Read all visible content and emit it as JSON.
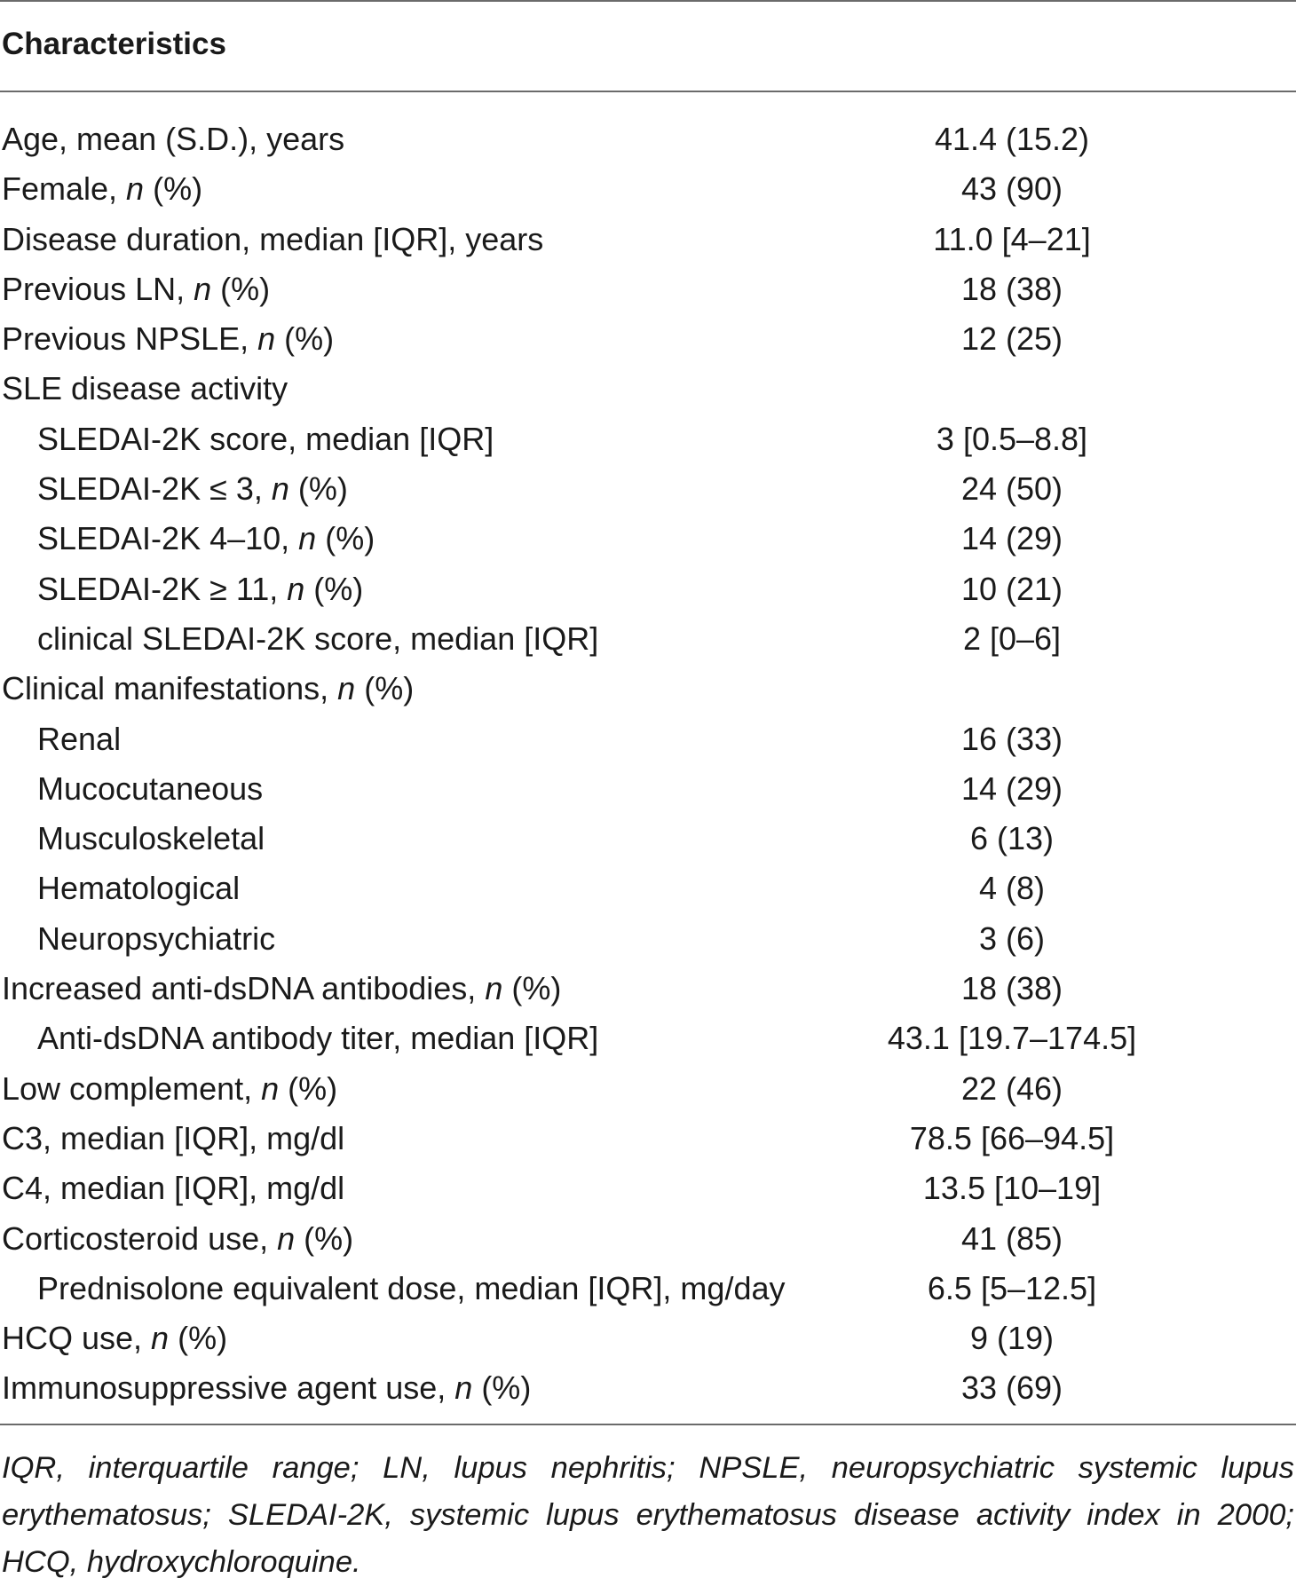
{
  "table": {
    "header": "Characteristics",
    "rows": [
      {
        "label": "Age, mean (S.D.), years",
        "value": "41.4 (15.2)",
        "indent": false
      },
      {
        "label": "Female, n (%)",
        "value": "43 (90)",
        "indent": false
      },
      {
        "label": "Disease duration, median [IQR], years",
        "value": "11.0 [4–21]",
        "indent": false
      },
      {
        "label": "Previous LN, n (%)",
        "value": "18 (38)",
        "indent": false
      },
      {
        "label": "Previous NPSLE, n (%)",
        "value": "12 (25)",
        "indent": false
      },
      {
        "label": "SLE disease activity",
        "value": "",
        "indent": false
      },
      {
        "label": "SLEDAI-2K score, median [IQR]",
        "value": "3 [0.5–8.8]",
        "indent": true
      },
      {
        "label": "SLEDAI-2K ≤ 3, n (%)",
        "value": "24 (50)",
        "indent": true
      },
      {
        "label": "SLEDAI-2K 4–10, n (%)",
        "value": "14 (29)",
        "indent": true
      },
      {
        "label": "SLEDAI-2K ≥ 11, n (%)",
        "value": "10 (21)",
        "indent": true
      },
      {
        "label": "clinical SLEDAI-2K score, median [IQR]",
        "value": "2 [0–6]",
        "indent": true
      },
      {
        "label": "Clinical manifestations, n (%)",
        "value": "",
        "indent": false
      },
      {
        "label": "Renal",
        "value": "16 (33)",
        "indent": true
      },
      {
        "label": "Mucocutaneous",
        "value": "14 (29)",
        "indent": true
      },
      {
        "label": "Musculoskeletal",
        "value": "6 (13)",
        "indent": true
      },
      {
        "label": "Hematological",
        "value": "4 (8)",
        "indent": true
      },
      {
        "label": "Neuropsychiatric",
        "value": "3 (6)",
        "indent": true
      },
      {
        "label": "Increased anti-dsDNA antibodies, n (%)",
        "value": "18 (38)",
        "indent": false
      },
      {
        "label": "Anti-dsDNA antibody titer, median [IQR]",
        "value": "43.1 [19.7–174.5]",
        "indent": true
      },
      {
        "label": "Low complement, n (%)",
        "value": "22 (46)",
        "indent": false
      },
      {
        "label": "C3, median [IQR], mg/dl",
        "value": "78.5 [66–94.5]",
        "indent": false
      },
      {
        "label": "C4, median [IQR], mg/dl",
        "value": "13.5 [10–19]",
        "indent": false
      },
      {
        "label": "Corticosteroid use, n (%)",
        "value": "41 (85)",
        "indent": false
      },
      {
        "label": "Prednisolone equivalent dose, median [IQR], mg/day",
        "value": "6.5 [5–12.5]",
        "indent": true
      },
      {
        "label": "HCQ use, n (%)",
        "value": "9 (19)",
        "indent": false
      },
      {
        "label": "Immunosuppressive agent use, n (%)",
        "value": "33 (69)",
        "indent": false
      }
    ]
  },
  "footnote": "IQR, interquartile range; LN, lupus nephritis; NPSLE, neuropsychiatric systemic lupus erythematosus; SLEDAI-2K, systemic lupus erythematosus disease activity index in 2000; HCQ, hydroxychloroquine."
}
